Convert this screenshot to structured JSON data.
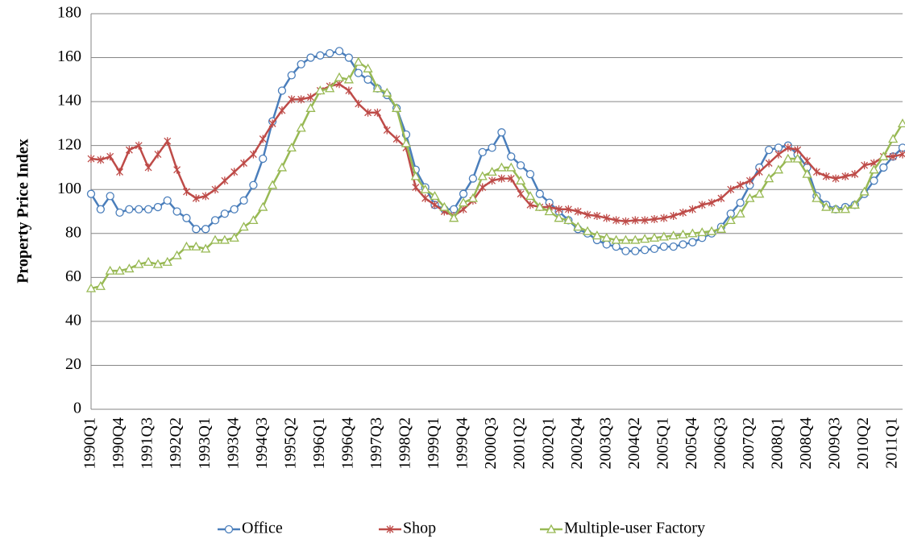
{
  "chart_data": {
    "type": "line",
    "y_label": "Property Price Index",
    "categories": [
      "1990Q1",
      null,
      null,
      "1990Q4",
      null,
      null,
      "1991Q3",
      null,
      null,
      "1992Q2",
      null,
      null,
      "1993Q1",
      null,
      null,
      "1993Q4",
      null,
      null,
      "1994Q3",
      null,
      null,
      "1995Q2",
      null,
      null,
      "1996Q1",
      null,
      null,
      "1996Q4",
      null,
      null,
      "1997Q3",
      null,
      null,
      "1998Q2",
      null,
      null,
      "1999Q1",
      null,
      null,
      "1999Q4",
      null,
      null,
      "2000Q3",
      null,
      null,
      "2001Q2",
      null,
      null,
      "2002Q1",
      null,
      null,
      "2002Q4",
      null,
      null,
      "2003Q3",
      null,
      null,
      "2004Q2",
      null,
      null,
      "2005Q1",
      null,
      null,
      "2005Q4",
      null,
      null,
      "2006Q3",
      null,
      null,
      "2007Q2",
      null,
      null,
      "2008Q1",
      null,
      null,
      "2008Q4",
      null,
      null,
      "2009Q3",
      null,
      null,
      "2010Q2",
      null,
      null,
      "2011Q1",
      null
    ],
    "series": [
      {
        "name": "Office",
        "color": "#4a7ebb",
        "marker": "circle",
        "values": [
          98,
          91,
          97,
          89.5,
          91,
          91,
          91,
          92,
          95,
          90,
          87,
          82,
          82,
          86,
          89,
          91,
          95,
          102,
          114,
          131,
          145,
          152,
          157,
          160,
          161,
          162,
          163,
          160,
          153,
          150,
          146,
          143,
          137,
          125,
          109,
          101,
          93,
          91,
          91,
          98,
          105,
          117,
          119,
          126,
          115,
          111,
          107,
          98,
          94,
          90,
          86,
          82,
          80,
          77,
          75,
          74,
          72,
          72,
          72.5,
          73,
          74,
          74,
          75,
          76,
          78,
          80,
          83,
          89,
          94,
          102,
          110,
          118,
          119,
          120,
          116,
          110,
          97,
          93,
          91,
          92,
          93,
          98,
          104,
          110,
          115,
          119
        ]
      },
      {
        "name": "Shop",
        "color": "#be4b48",
        "marker": "star",
        "values": [
          114,
          113.5,
          115,
          108,
          118,
          120,
          110,
          116,
          122,
          109,
          99,
          96,
          97,
          100,
          104,
          108,
          112,
          116,
          123,
          130,
          136,
          141,
          141,
          142,
          145,
          147,
          148,
          145,
          139,
          135,
          135,
          127,
          123,
          119,
          101,
          96,
          93,
          90,
          88,
          91,
          95,
          101,
          104,
          105,
          105,
          98,
          93,
          92,
          92,
          91,
          91,
          90,
          88.5,
          88,
          87,
          86,
          85.5,
          86,
          86,
          86.5,
          87,
          88,
          89.5,
          91,
          93,
          94,
          96,
          100,
          102,
          104,
          108,
          112,
          116,
          119,
          118,
          113,
          108,
          106,
          105,
          106,
          107,
          111,
          112,
          115,
          115,
          116
        ]
      },
      {
        "name": "Multiple-user Factory",
        "color": "#98b954",
        "marker": "triangle",
        "values": [
          55,
          56,
          63,
          63,
          64,
          66,
          67,
          66,
          67,
          70,
          74,
          74,
          73,
          77,
          77,
          78,
          83,
          86,
          92,
          102,
          110,
          119,
          128,
          137,
          145,
          146,
          151,
          150,
          158,
          155,
          146,
          144,
          137,
          121,
          106,
          100,
          97,
          92,
          87,
          94,
          96,
          106,
          108,
          110,
          110,
          104,
          97,
          92,
          90,
          87,
          86,
          83,
          81,
          79,
          78,
          77,
          77,
          77,
          77.5,
          78,
          78.5,
          79,
          79.5,
          80,
          80.5,
          81,
          82,
          86,
          89,
          96,
          98,
          105,
          109,
          114,
          114,
          107,
          96,
          92,
          91,
          91,
          93,
          99,
          109,
          115,
          123,
          130
        ]
      }
    ],
    "ylim": [
      0,
      180
    ],
    "yticks": [
      0,
      20,
      40,
      60,
      80,
      100,
      120,
      140,
      160,
      180
    ],
    "grid": true
  }
}
